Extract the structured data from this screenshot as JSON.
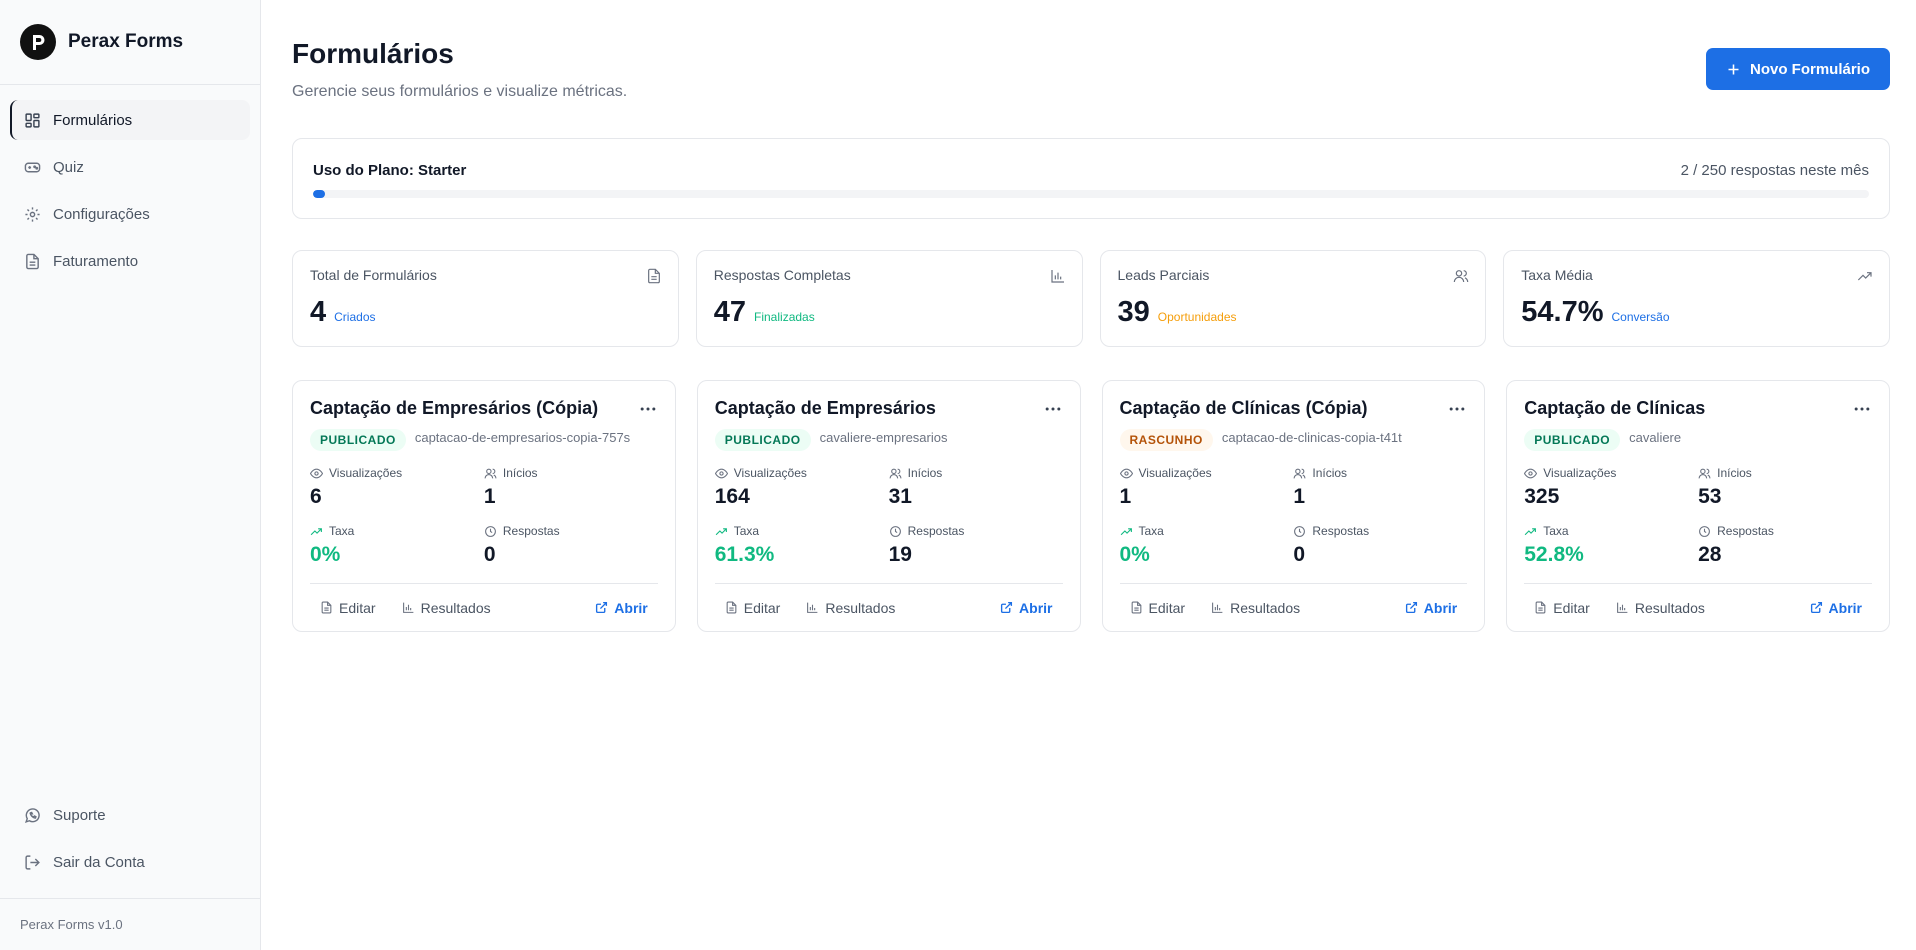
{
  "brand": {
    "name": "Perax Forms",
    "version": "Perax Forms v1.0"
  },
  "nav": {
    "items": [
      {
        "label": "Formulários",
        "icon": "grid-icon"
      },
      {
        "label": "Quiz",
        "icon": "gamepad-icon"
      },
      {
        "label": "Configurações",
        "icon": "gear-icon"
      },
      {
        "label": "Faturamento",
        "icon": "document-icon"
      }
    ],
    "support": "Suporte",
    "logout": "Sair da Conta"
  },
  "header": {
    "title": "Formulários",
    "subtitle": "Gerencie seus formulários e visualize métricas.",
    "new_button": "Novo Formulário"
  },
  "plan": {
    "label": "Uso do Plano: Starter",
    "usage_text": "2 / 250 respostas neste mês",
    "used": 2,
    "limit": 250
  },
  "stats": [
    {
      "label": "Total de Formulários",
      "value": "4",
      "note": "Criados",
      "note_color": "#1d6fe5",
      "icon": "file-icon"
    },
    {
      "label": "Respostas Completas",
      "value": "47",
      "note": "Finalizadas",
      "note_color": "#10b981",
      "icon": "bar-chart-icon"
    },
    {
      "label": "Leads Parciais",
      "value": "39",
      "note": "Oportunidades",
      "note_color": "#f59e0b",
      "icon": "users-icon"
    },
    {
      "label": "Taxa Média",
      "value": "54.7%",
      "note": "Conversão",
      "note_color": "#1d6fe5",
      "icon": "trending-up-icon"
    }
  ],
  "labels": {
    "views": "Visualizações",
    "starts": "Inícios",
    "rate": "Taxa",
    "responses": "Respostas",
    "edit": "Editar",
    "results": "Resultados",
    "open": "Abrir"
  },
  "forms": [
    {
      "title": "Captação de Empresários (Cópia)",
      "status": "PUBLICADO",
      "slug": "captacao-de-empresarios-copia-757s",
      "views": "6",
      "starts": "1",
      "rate": "0%",
      "responses": "0"
    },
    {
      "title": "Captação de Empresários",
      "status": "PUBLICADO",
      "slug": "cavaliere-empresarios",
      "views": "164",
      "starts": "31",
      "rate": "61.3%",
      "responses": "19"
    },
    {
      "title": "Captação de Clínicas (Cópia)",
      "status": "RASCUNHO",
      "slug": "captacao-de-clinicas-copia-t41t",
      "views": "1",
      "starts": "1",
      "rate": "0%",
      "responses": "0"
    },
    {
      "title": "Captação de Clínicas",
      "status": "PUBLICADO",
      "slug": "cavaliere",
      "views": "325",
      "starts": "53",
      "rate": "52.8%",
      "responses": "28"
    }
  ]
}
